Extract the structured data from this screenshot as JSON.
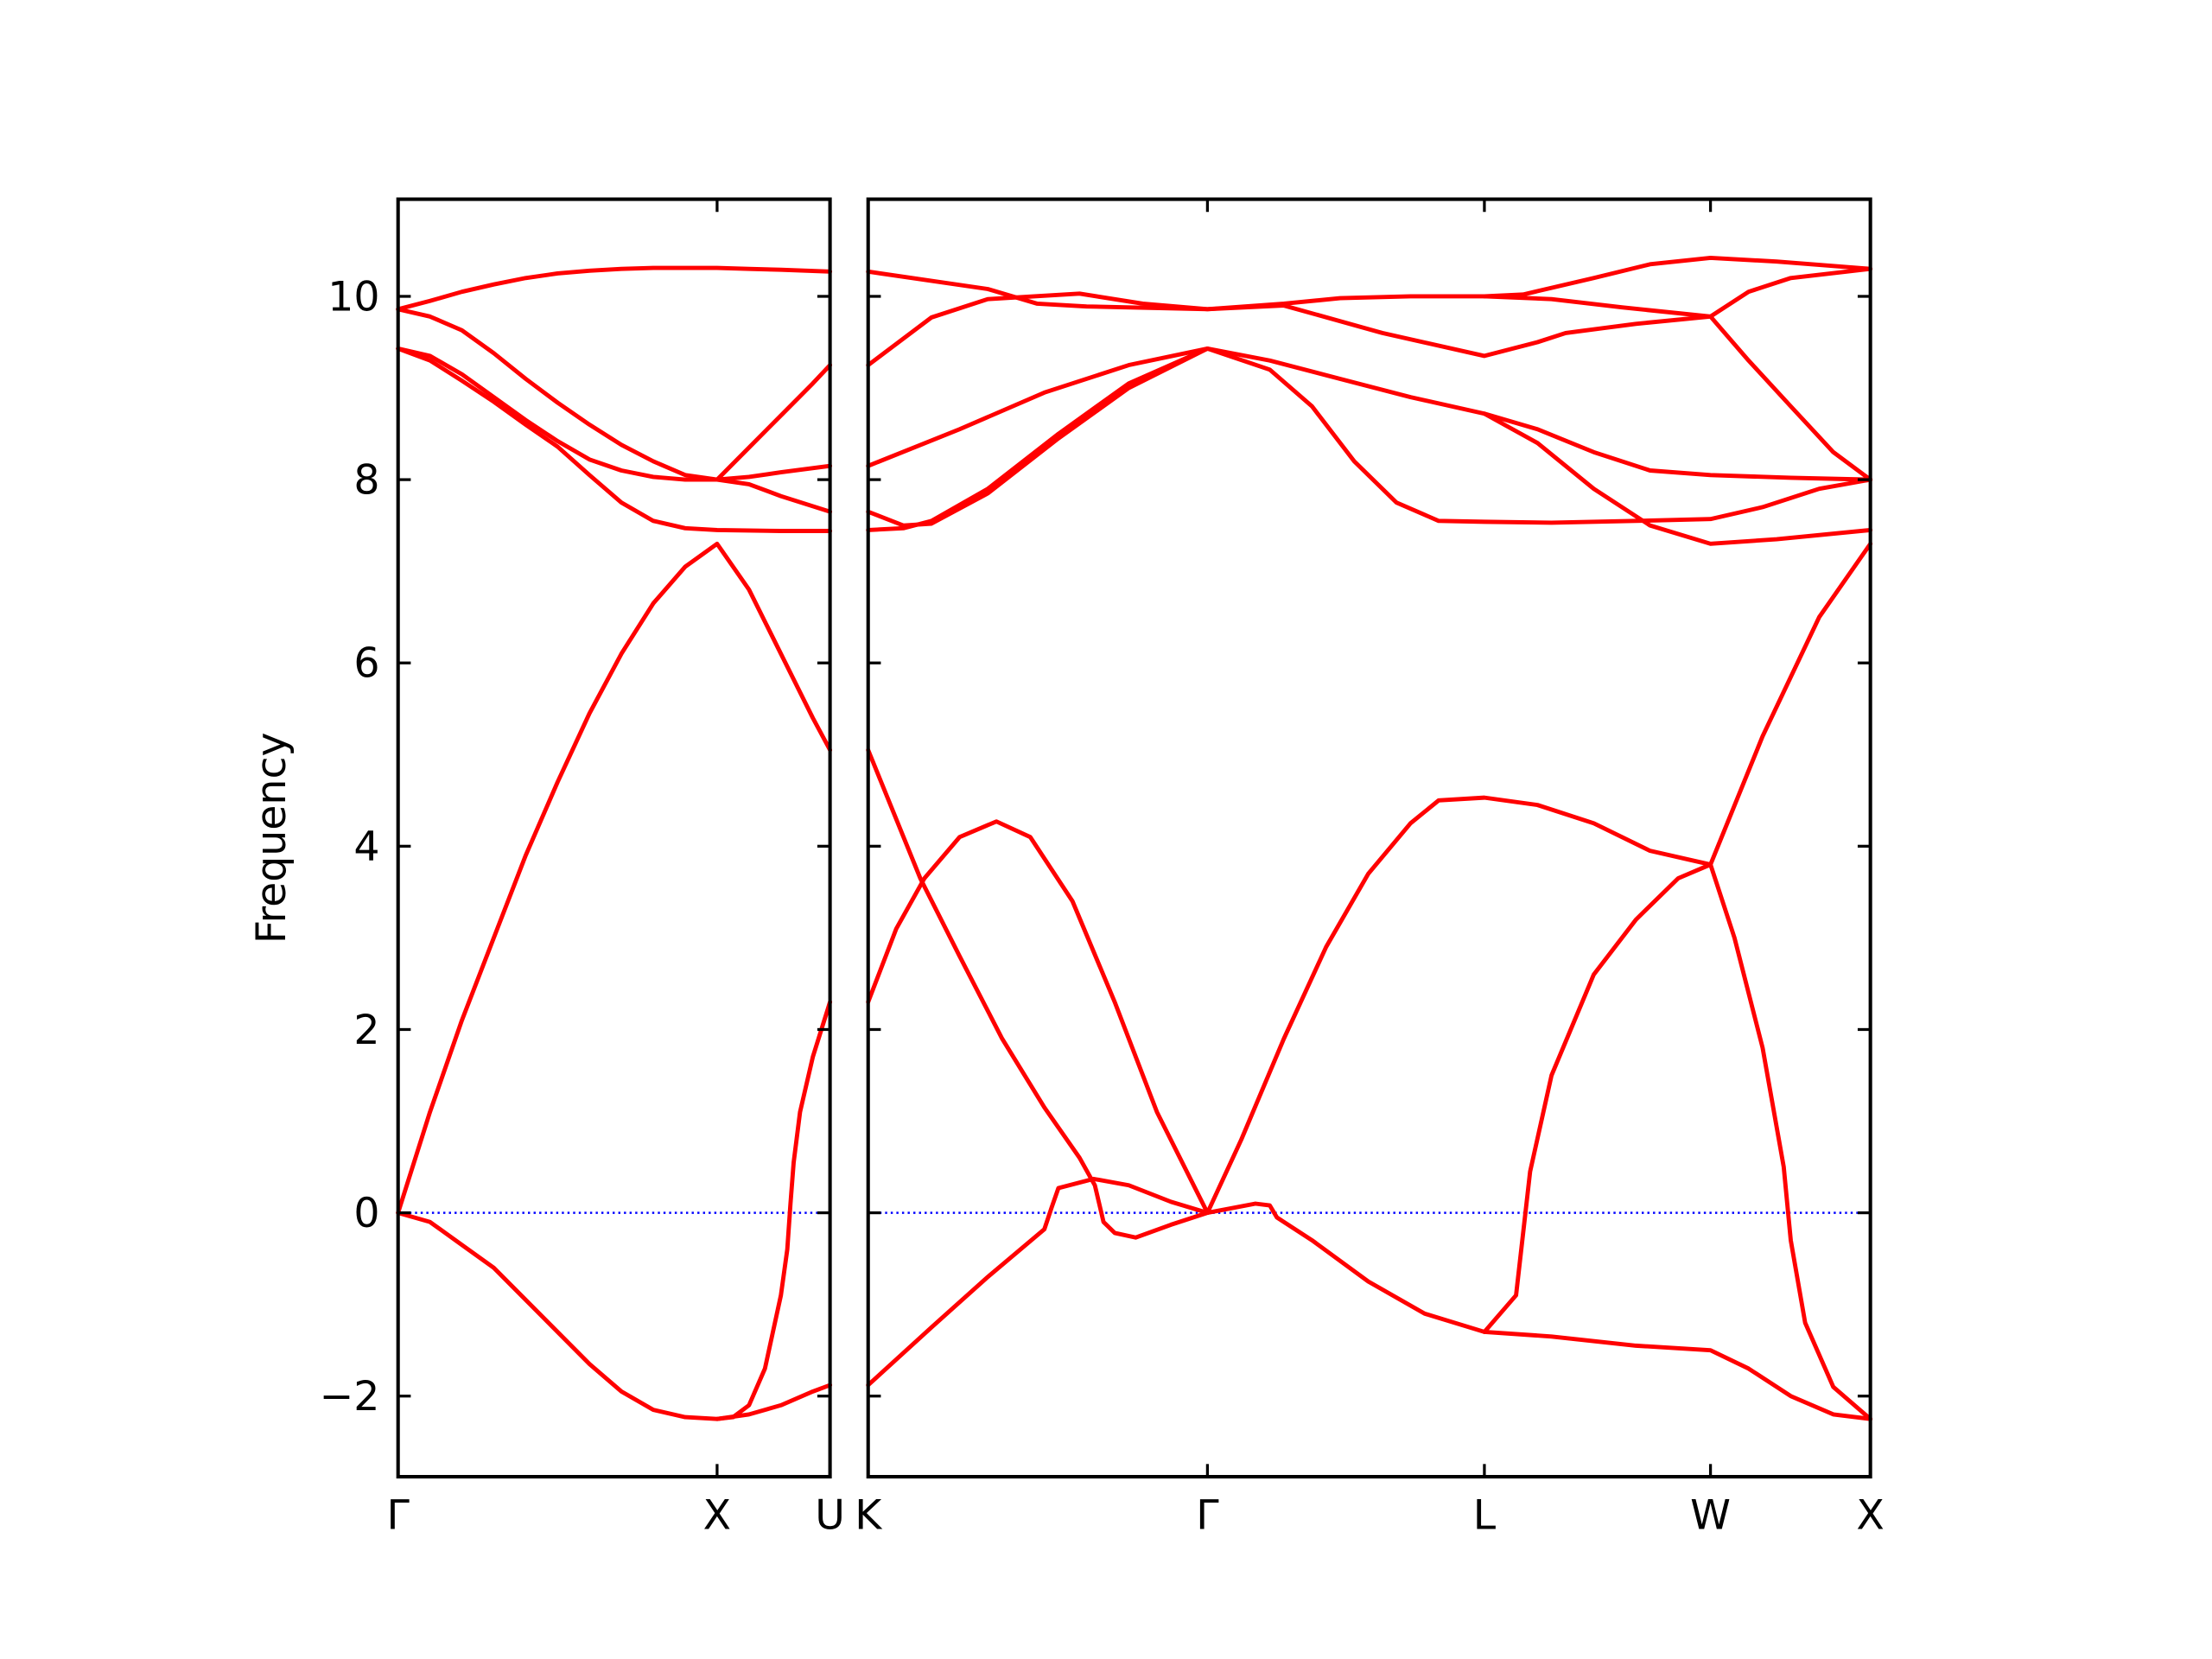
{
  "chart_data": [
    {
      "type": "line",
      "ylabel": "Frequency",
      "color": "#ff0000",
      "xlim": [
        0,
        1.354
      ],
      "ylim": [
        -2.88,
        11.06
      ],
      "xticks": [
        {
          "value": 0,
          "label": "Γ"
        },
        {
          "value": 1,
          "label": "X"
        },
        {
          "value": 1.354,
          "label": "U"
        }
      ],
      "yticks": [
        {
          "value": -2,
          "label": "−2"
        },
        0,
        2,
        4,
        6,
        8,
        10
      ],
      "ytick_labels": true,
      "hline": {
        "y": 0,
        "color": "#0000ff"
      },
      "series": [
        {
          "x": [
            0,
            0.1,
            0.2,
            0.3,
            0.4,
            0.5,
            0.6,
            0.7,
            0.8,
            0.9,
            1,
            1.1,
            1.2,
            1.3,
            1.354
          ],
          "values": [
            0,
            -0.1,
            -0.35,
            -0.6,
            -0.95,
            -1.3,
            -1.65,
            -1.95,
            -2.15,
            -2.23,
            -2.25,
            -2.2,
            -2.1,
            -1.95,
            -1.88
          ]
        },
        {
          "x": [
            0,
            0.1,
            0.2,
            0.3,
            0.4,
            0.5,
            0.6,
            0.7,
            0.8,
            0.9,
            1,
            1.1,
            1.2,
            1.3,
            1.354
          ],
          "values": [
            0,
            1.1,
            2.1,
            3.0,
            3.9,
            4.7,
            5.45,
            6.1,
            6.65,
            7.05,
            7.3,
            6.8,
            6.1,
            5.4,
            5.05
          ]
        },
        {
          "x": [
            1,
            1.05,
            1.1,
            1.15,
            1.2,
            1.22,
            1.23,
            1.24,
            1.26,
            1.3,
            1.354
          ],
          "values": [
            -2.25,
            -2.23,
            -2.1,
            -1.7,
            -0.9,
            -0.4,
            0.1,
            0.55,
            1.1,
            1.7,
            2.3
          ]
        },
        {
          "x": [
            0,
            0.1,
            0.2,
            0.3,
            0.4,
            0.5,
            0.6,
            0.7,
            0.8,
            0.9,
            1,
            1.1,
            1.2,
            1.354
          ],
          "values": [
            9.86,
            9.95,
            10.05,
            10.13,
            10.2,
            10.25,
            10.28,
            10.3,
            10.31,
            10.31,
            10.31,
            10.3,
            10.29,
            10.27
          ]
        },
        {
          "x": [
            0,
            0.1,
            0.2,
            0.3,
            0.4,
            0.5,
            0.6,
            0.7,
            0.8,
            0.9,
            1,
            1.1,
            1.2,
            1.3,
            1.354
          ],
          "values": [
            9.86,
            9.78,
            9.63,
            9.38,
            9.1,
            8.84,
            8.6,
            8.38,
            8.2,
            8.05,
            8.0,
            8.35,
            8.7,
            9.05,
            9.25
          ]
        },
        {
          "x": [
            0,
            0.1,
            0.2,
            0.3,
            0.4,
            0.5,
            0.6,
            0.7,
            0.8,
            0.9,
            1,
            1.1,
            1.2,
            1.354
          ],
          "values": [
            9.43,
            9.35,
            9.15,
            8.9,
            8.65,
            8.42,
            8.22,
            8.1,
            8.03,
            8.0,
            8.0,
            8.03,
            8.08,
            8.15
          ]
        },
        {
          "x": [
            0,
            0.1,
            0.2,
            0.3,
            0.4,
            0.5,
            0.6,
            0.7,
            0.8,
            0.9,
            1,
            1.2,
            1.354
          ],
          "values": [
            9.43,
            9.3,
            9.08,
            8.85,
            8.6,
            8.36,
            8.05,
            7.75,
            7.55,
            7.47,
            7.45,
            7.44,
            7.44
          ]
        },
        {
          "x": [
            1,
            1.1,
            1.2,
            1.354
          ],
          "values": [
            8.0,
            7.95,
            7.82,
            7.65
          ]
        }
      ]
    },
    {
      "type": "line",
      "color": "#ff0000",
      "xlim": [
        1.354,
        4.488
      ],
      "ylim": [
        -2.88,
        11.06
      ],
      "xticks": [
        {
          "value": 1.354,
          "label": "K"
        },
        {
          "value": 2.415,
          "label": "Γ"
        },
        {
          "value": 3.281,
          "label": "L"
        },
        {
          "value": 3.988,
          "label": "W"
        },
        {
          "value": 4.488,
          "label": "X"
        }
      ],
      "yticks": [
        -2,
        0,
        2,
        4,
        6,
        8,
        10
      ],
      "ytick_labels": false,
      "hline": {
        "y": 0,
        "color": "#0000ff"
      },
      "series": [
        {
          "x": [
            1.354,
            1.517,
            1.64,
            1.773,
            1.905,
            2.015,
            2.063,
            2.09,
            2.125,
            2.191,
            2.301,
            2.415
          ],
          "values": [
            5.05,
            3.65,
            2.8,
            1.9,
            1.15,
            0.6,
            0.3,
            -0.1,
            -0.22,
            -0.27,
            -0.13,
            0
          ]
        },
        {
          "x": [
            1.354,
            1.442,
            1.53,
            1.64,
            1.755,
            1.861,
            1.993,
            2.125,
            2.257,
            2.415
          ],
          "values": [
            2.3,
            3.1,
            3.65,
            4.1,
            4.27,
            4.1,
            3.4,
            2.3,
            1.1,
            0
          ]
        },
        {
          "x": [
            1.354,
            1.552,
            1.728,
            1.905,
            1.927,
            1.949,
            2.059,
            2.169,
            2.301,
            2.415
          ],
          "values": [
            -1.88,
            -1.25,
            -0.7,
            -0.18,
            0.05,
            0.27,
            0.37,
            0.3,
            0.12,
            0
          ]
        },
        {
          "x": [
            2.415,
            2.521,
            2.654,
            2.786,
            2.918,
            3.05,
            3.138,
            3.281,
            3.447,
            3.623,
            3.799,
            3.988,
            4.151,
            4.328,
            4.488
          ],
          "values": [
            0,
            0.8,
            1.9,
            2.9,
            3.7,
            4.25,
            4.5,
            4.53,
            4.45,
            4.25,
            3.95,
            3.8,
            5.2,
            6.5,
            7.3
          ]
        },
        {
          "x": [
            2.415,
            2.565,
            2.61,
            2.632,
            2.742,
            2.918,
            3.094,
            3.281,
            3.491,
            3.755,
            3.988,
            4.107,
            4.239,
            4.372,
            4.488
          ],
          "values": [
            0,
            0.1,
            0.08,
            -0.05,
            -0.3,
            -0.75,
            -1.1,
            -1.3,
            -1.35,
            -1.45,
            -1.5,
            -1.7,
            -2.0,
            -2.2,
            -2.25
          ]
        },
        {
          "x": [
            3.281,
            3.38,
            3.424,
            3.491,
            3.623,
            3.755,
            3.887,
            3.988,
            4.063,
            4.151,
            4.217,
            4.239,
            4.284,
            4.372,
            4.488
          ],
          "values": [
            -1.3,
            -0.9,
            0.45,
            1.5,
            2.6,
            3.2,
            3.65,
            3.8,
            3.0,
            1.8,
            0.5,
            -0.3,
            -1.2,
            -1.9,
            -2.25
          ]
        },
        {
          "x": [
            1.354,
            1.728,
            1.883,
            2.037,
            2.415,
            2.654,
            2.83,
            3.05,
            3.281,
            3.402,
            3.623,
            3.799,
            3.988,
            4.195,
            4.488
          ],
          "values": [
            10.27,
            10.08,
            9.92,
            9.89,
            9.86,
            9.92,
            9.98,
            10.0,
            10.0,
            10.02,
            10.2,
            10.35,
            10.42,
            10.38,
            10.3
          ]
        },
        {
          "x": [
            1.354,
            1.552,
            1.728,
            2.015,
            2.213,
            2.415,
            2.654,
            2.962,
            3.281,
            3.447,
            3.535,
            3.755,
            3.988,
            4.107,
            4.239,
            4.488
          ],
          "values": [
            9.25,
            9.77,
            9.97,
            10.03,
            9.92,
            9.86,
            9.9,
            9.6,
            9.35,
            9.5,
            9.6,
            9.7,
            9.78,
            10.05,
            10.2,
            10.3
          ]
        },
        {
          "x": [
            3.281,
            3.491,
            3.711,
            3.988,
            4.107,
            4.239,
            4.372,
            4.488
          ],
          "values": [
            10.0,
            9.97,
            9.88,
            9.78,
            9.3,
            8.8,
            8.3,
            8.0
          ]
        },
        {
          "x": [
            1.354,
            1.64,
            1.905,
            2.169,
            2.415,
            2.61,
            2.83,
            3.05,
            3.281,
            3.447,
            3.623,
            3.799,
            3.988,
            4.239,
            4.488
          ],
          "values": [
            8.15,
            8.55,
            8.95,
            9.25,
            9.43,
            9.3,
            9.1,
            8.9,
            8.72,
            8.55,
            8.3,
            8.1,
            8.05,
            8.02,
            8.0
          ]
        },
        {
          "x": [
            1.354,
            1.464,
            1.552,
            1.728,
            1.949,
            2.169,
            2.415,
            2.61,
            2.742,
            2.874,
            3.006,
            3.138,
            3.281,
            3.491,
            3.755,
            3.988,
            4.151,
            4.328,
            4.488
          ],
          "values": [
            7.65,
            7.5,
            7.52,
            7.85,
            8.45,
            9.0,
            9.43,
            9.2,
            8.8,
            8.2,
            7.75,
            7.55,
            7.54,
            7.53,
            7.55,
            7.57,
            7.7,
            7.9,
            8.0
          ]
        },
        {
          "x": [
            1.354,
            1.464,
            1.552,
            1.728,
            1.949,
            2.169,
            2.415
          ],
          "values": [
            7.45,
            7.47,
            7.55,
            7.9,
            8.5,
            9.05,
            9.43
          ]
        },
        {
          "x": [
            3.281,
            3.447,
            3.623,
            3.799,
            3.988,
            4.195,
            4.488
          ],
          "values": [
            8.72,
            8.4,
            7.9,
            7.5,
            7.3,
            7.35,
            7.45
          ]
        }
      ]
    }
  ]
}
